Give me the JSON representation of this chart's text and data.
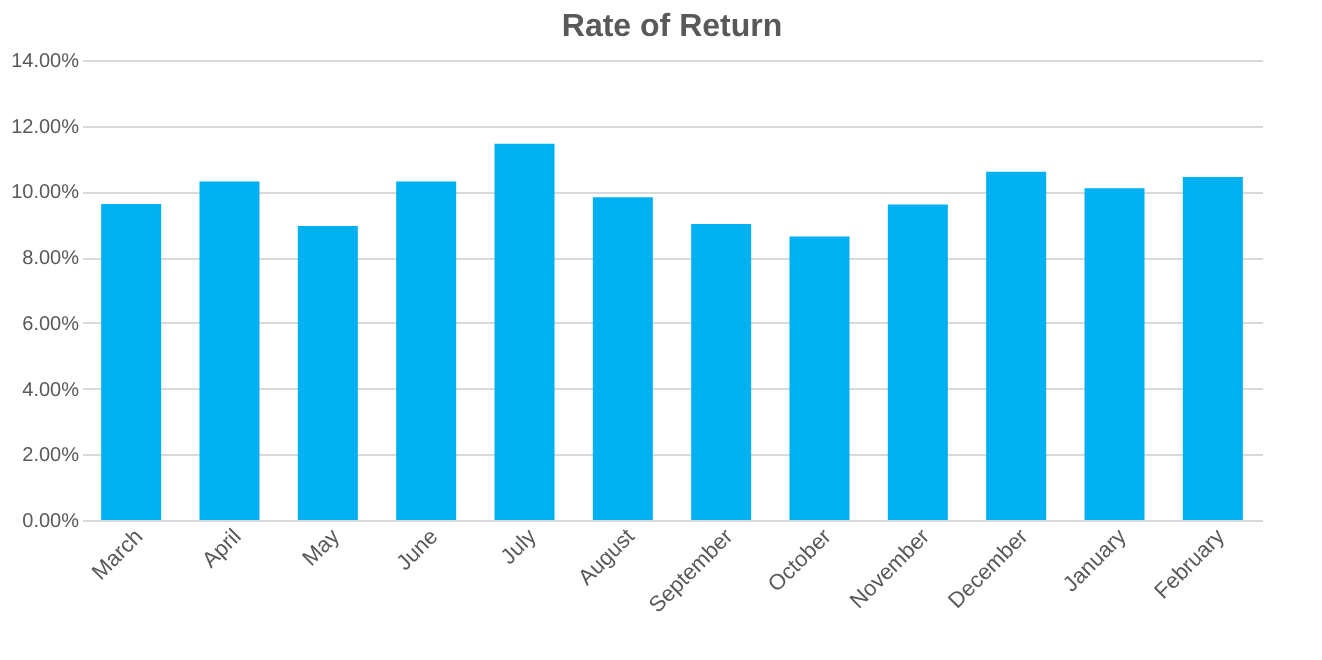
{
  "chart_data": {
    "type": "bar",
    "title": "Rate of Return",
    "categories": [
      "March",
      "April",
      "May",
      "June",
      "July",
      "August",
      "September",
      "October",
      "November",
      "December",
      "January",
      "February"
    ],
    "values": [
      9.62,
      10.3,
      8.95,
      10.3,
      11.45,
      9.82,
      9.01,
      8.63,
      9.6,
      10.6,
      10.1,
      10.44
    ],
    "color": "#00b0f0",
    "ylim": [
      0,
      14
    ],
    "yticks": [
      {
        "value": 0,
        "label": "0.00%"
      },
      {
        "value": 2,
        "label": "2.00%"
      },
      {
        "value": 4,
        "label": "4.00%"
      },
      {
        "value": 6,
        "label": "6.00%"
      },
      {
        "value": 8,
        "label": "8.00%"
      },
      {
        "value": 10,
        "label": "10.00%"
      },
      {
        "value": 12,
        "label": "12.00%"
      },
      {
        "value": 14,
        "label": "14.00%"
      }
    ],
    "grid": "y"
  }
}
